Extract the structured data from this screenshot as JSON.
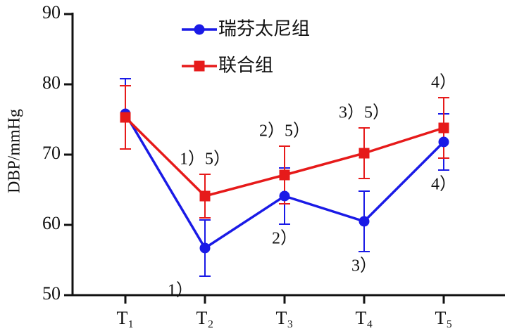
{
  "chart_data": {
    "type": "line",
    "y_label": "DBP/mmHg",
    "categories": [
      "T₁",
      "T₂",
      "T₃",
      "T₄",
      "T₅"
    ],
    "series": [
      {
        "name": "瑞芬太尼组",
        "color": "#1a1ae6",
        "marker": "circle",
        "values": [
          75.8,
          56.7,
          64.1,
          60.5,
          71.8
        ],
        "errors": [
          5,
          4,
          4,
          4.3,
          4
        ],
        "annotations": [
          null,
          "1）",
          "2）",
          "3）",
          "4）"
        ]
      },
      {
        "name": "联合组",
        "color": "#e61a1a",
        "marker": "square",
        "values": [
          75.3,
          64.1,
          67.1,
          70.2,
          73.8
        ],
        "errors": [
          4.5,
          3.1,
          4.1,
          3.6,
          4.3
        ],
        "annotations": [
          null,
          "1）5）",
          "2）5）",
          "3）5）",
          "4）"
        ]
      }
    ],
    "ylim": [
      50,
      90
    ],
    "yticks": [
      50,
      60,
      70,
      80,
      90
    ]
  }
}
